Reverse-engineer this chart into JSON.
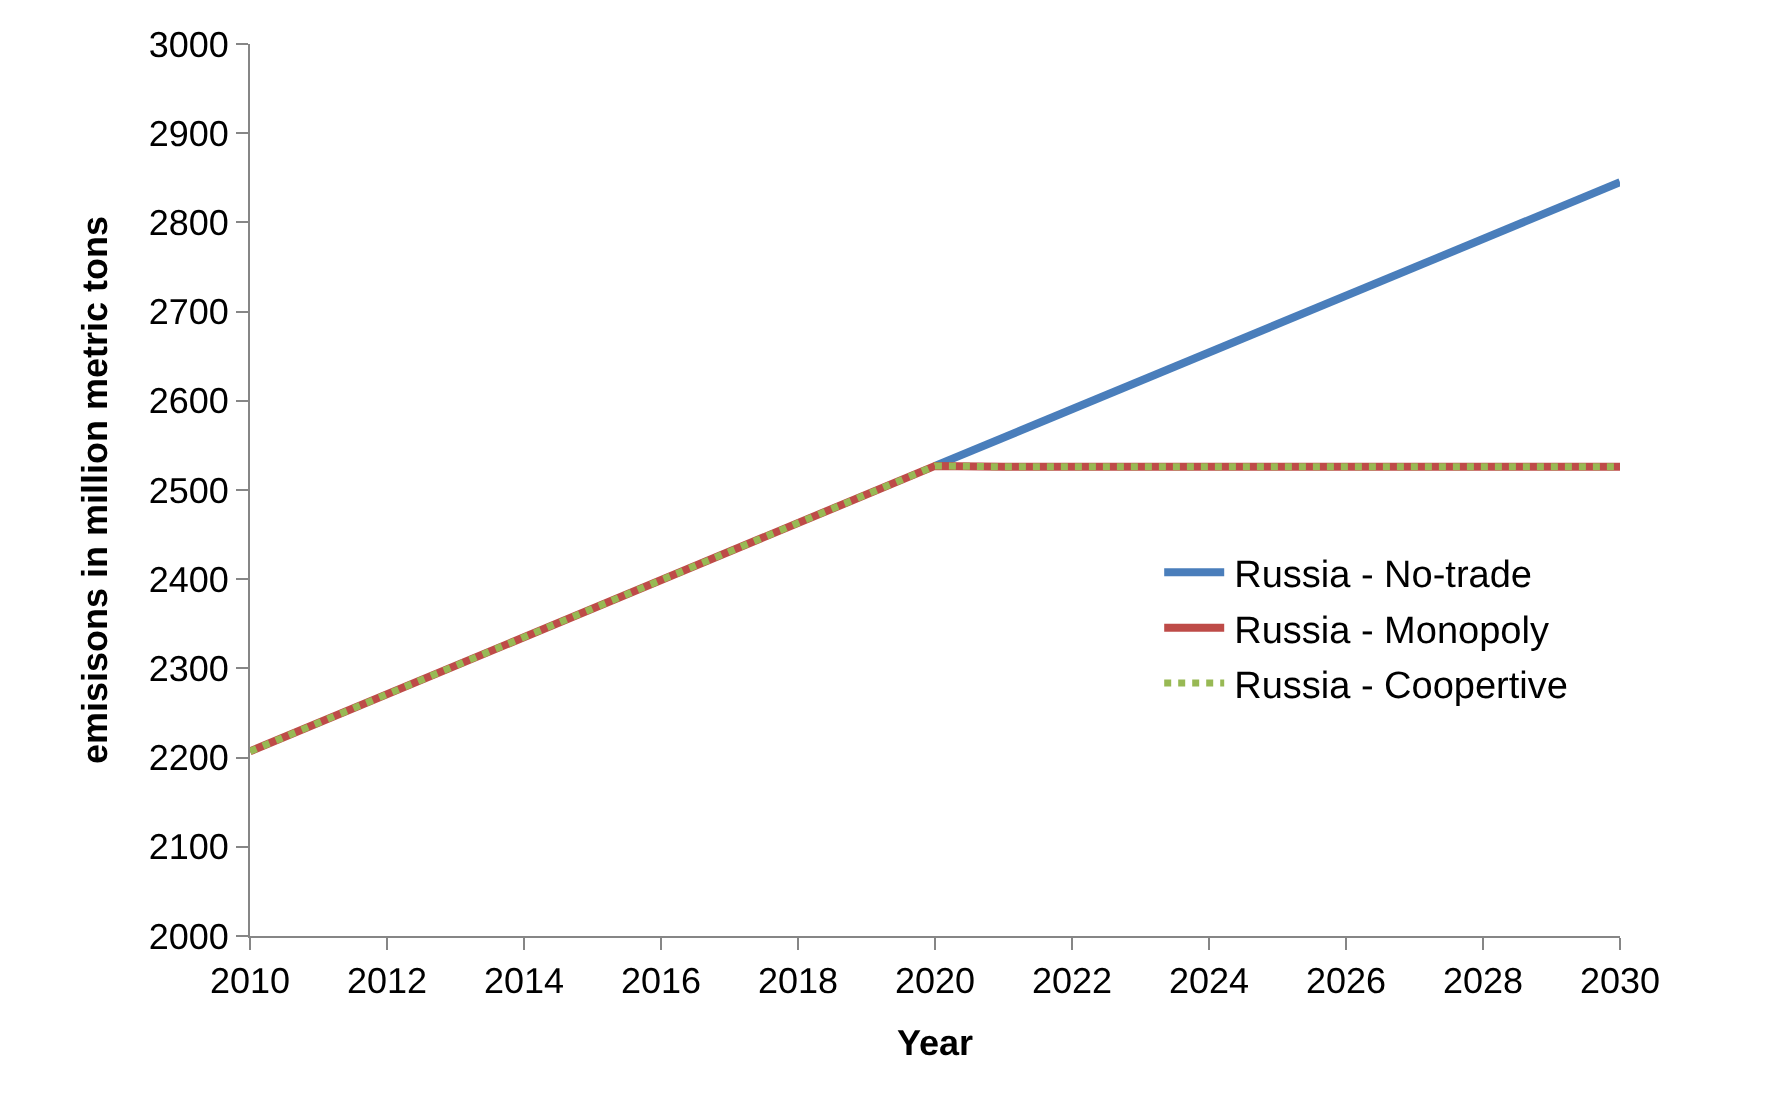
{
  "chart_data": {
    "type": "line",
    "xlabel": "Year",
    "ylabel": "emisisons in million metric tons",
    "series": [
      {
        "name": "Russia - No-trade",
        "color": "#4a7ebb",
        "x": [
          2020,
          2030
        ],
        "values": [
          2527,
          2845
        ],
        "line_style": "solid"
      },
      {
        "name": "Russia - Monopoly",
        "color": "#be4b48",
        "x": [
          2010,
          2020,
          2021,
          2030
        ],
        "values": [
          2207,
          2527,
          2526,
          2526
        ],
        "line_style": "solid"
      },
      {
        "name": "Russia - Coopertive",
        "color": "#98b954",
        "x": [
          2010,
          2020,
          2021,
          2030
        ],
        "values": [
          2207,
          2527,
          2526,
          2526
        ],
        "line_style": "dotted"
      }
    ],
    "xlim": [
      2010,
      2030
    ],
    "xticks": [
      2010,
      2012,
      2014,
      2016,
      2018,
      2020,
      2022,
      2024,
      2026,
      2028,
      2030
    ],
    "ylim": [
      2000,
      3000
    ],
    "yticks": [
      2000,
      2100,
      2200,
      2300,
      2400,
      2500,
      2600,
      2700,
      2800,
      2900,
      3000
    ],
    "legend": "right",
    "marker": "none"
  }
}
